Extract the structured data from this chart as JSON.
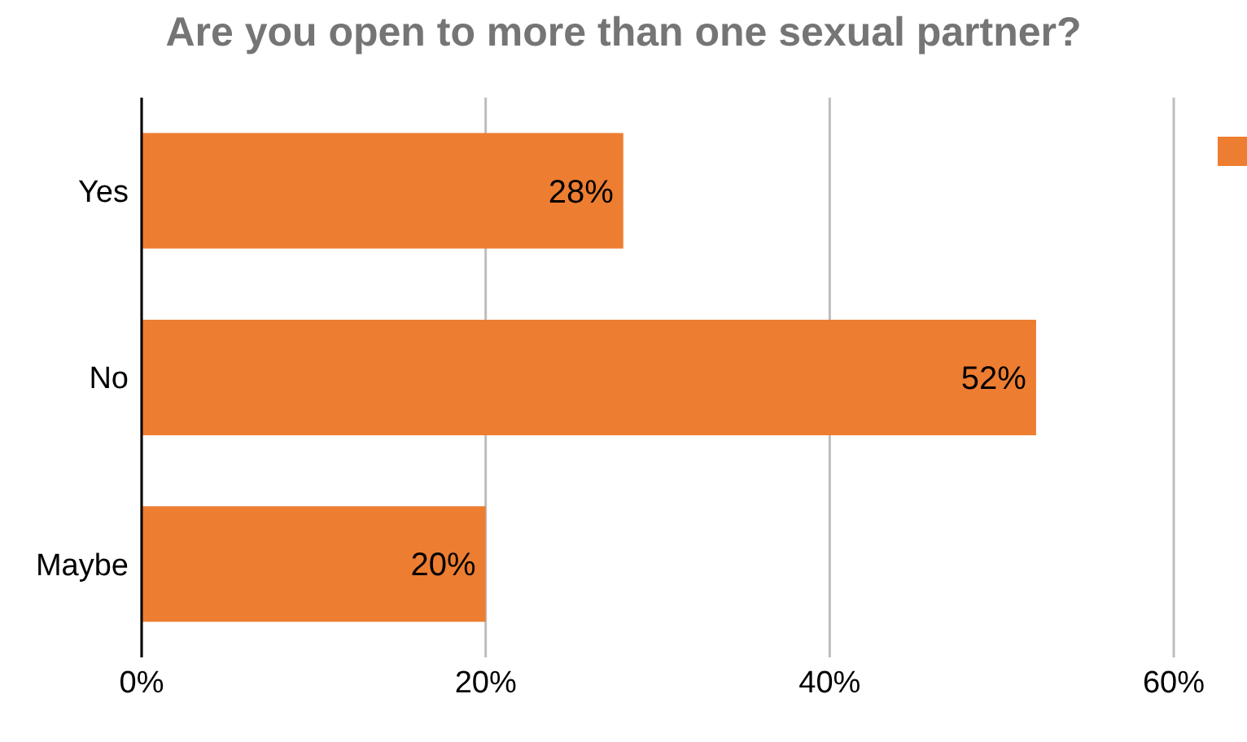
{
  "chart_data": {
    "type": "bar",
    "orientation": "horizontal",
    "title": "Are you open to more than one sexual partner?",
    "categories": [
      "Yes",
      "No",
      "Maybe"
    ],
    "series": [
      {
        "color": "#ed7d31",
        "values": [
          28,
          52,
          20
        ],
        "value_labels": [
          "28%",
          "52%",
          "20%"
        ]
      }
    ],
    "xlim": [
      0,
      60
    ],
    "xticks": [
      {
        "value": 0,
        "label": "0%"
      },
      {
        "value": 20,
        "label": "20%"
      },
      {
        "value": 40,
        "label": "40%"
      },
      {
        "value": 60,
        "label": "60%"
      }
    ],
    "grid": "x"
  }
}
